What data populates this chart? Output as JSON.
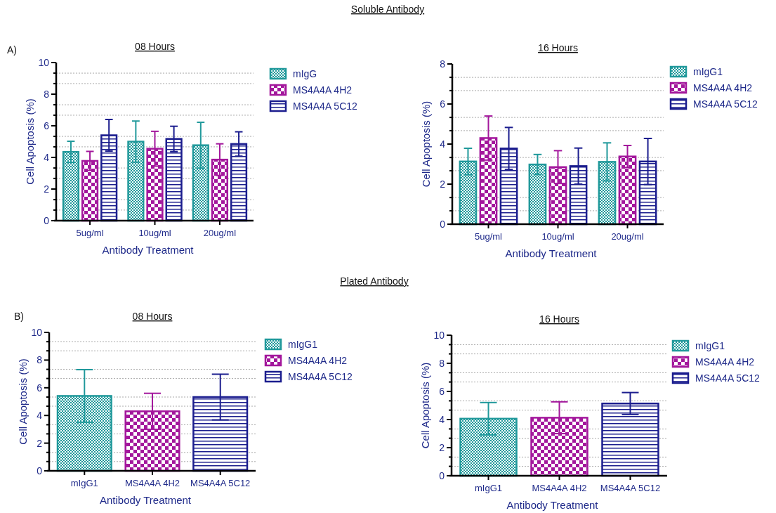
{
  "chart_data": [
    {
      "type": "bar",
      "title": "08 Hours",
      "xlabel": "Antibody Treatment",
      "ylabel": "Cell Apoptosis (%)",
      "annotations": [
        "Soluble Antibody",
        "A)"
      ],
      "categories": [
        "5ug/ml",
        "10ug/ml",
        "20ug/ml"
      ],
      "series": [
        {
          "name": "mIgG",
          "color": "#20999b",
          "values": [
            4.35,
            5.0,
            4.77
          ],
          "errors": [
            0.67,
            1.3,
            1.45
          ]
        },
        {
          "name": "MS4A4A 4H2",
          "color": "#a3179c",
          "values": [
            3.78,
            4.55,
            3.86
          ],
          "errors": [
            0.6,
            1.1,
            1.0
          ]
        },
        {
          "name": "MS4A4A 5C12",
          "color": "#1b1d8e",
          "values": [
            5.4,
            5.17,
            4.85
          ],
          "errors": [
            1.0,
            0.8,
            0.77
          ]
        }
      ],
      "ylim": [
        0,
        10
      ],
      "yticks": [
        0,
        {
          "value": 0.67,
          "label": null
        },
        {
          "value": 1.33,
          "label": null
        },
        2,
        {
          "value": 2.67,
          "label": null
        },
        {
          "value": 3.33,
          "label": null
        },
        4,
        {
          "value": 4.67,
          "label": null
        },
        {
          "value": 5.33,
          "label": null
        },
        6,
        {
          "value": 6.67,
          "label": null
        },
        {
          "value": 7.33,
          "label": null
        },
        8,
        {
          "value": 8.67,
          "label": null
        },
        {
          "value": 9.33,
          "label": null
        },
        10
      ],
      "grid": "y",
      "legend": "top right"
    },
    {
      "type": "bar",
      "title": "16 Hours",
      "xlabel": "Antibody Treatment",
      "ylabel": "Cell Apoptosis (%)",
      "categories": [
        "5ug/ml",
        "10ug/ml",
        "20ug/ml"
      ],
      "series": [
        {
          "name": "mIgG1",
          "color": "#20999b",
          "values": [
            3.13,
            2.98,
            3.11
          ],
          "errors": [
            0.66,
            0.5,
            0.95
          ]
        },
        {
          "name": "MS4A4A 4H2",
          "color": "#a3179c",
          "values": [
            4.3,
            2.85,
            3.38
          ],
          "errors": [
            1.1,
            0.82,
            0.55
          ]
        },
        {
          "name": "MS4A4A 5C12",
          "color": "#1b1d8e",
          "values": [
            3.78,
            2.9,
            3.13
          ],
          "errors": [
            1.05,
            0.9,
            1.15
          ]
        }
      ],
      "ylim": [
        0,
        8
      ],
      "yticks": [
        0,
        {
          "value": 0.67,
          "label": null
        },
        {
          "value": 1.33,
          "label": null
        },
        2,
        {
          "value": 2.67,
          "label": null
        },
        {
          "value": 3.33,
          "label": null
        },
        4,
        {
          "value": 4.67,
          "label": null
        },
        {
          "value": 5.33,
          "label": null
        },
        6,
        {
          "value": 6.67,
          "label": null
        },
        {
          "value": 7.33,
          "label": null
        },
        8
      ],
      "grid": "y",
      "legend": "top right"
    },
    {
      "type": "bar",
      "title": "08 Hours",
      "xlabel": "Antibody Treatment",
      "ylabel": "Cell Apoptosis (%)",
      "annotations": [
        "Plated Antibody",
        "B)"
      ],
      "categories": [
        "mIgG1",
        "MS4A4A 4H2",
        "MS4A4A 5C12"
      ],
      "series": [
        {
          "name": "mIgG1",
          "color": "#20999b",
          "values": [
            5.41,
            null,
            null
          ],
          "errors": [
            1.9,
            null,
            null
          ]
        },
        {
          "name": "MS4A4A 4H2",
          "color": "#a3179c",
          "values": [
            null,
            4.3,
            null
          ],
          "errors": [
            null,
            1.3,
            null
          ]
        },
        {
          "name": "MS4A4A 5C12",
          "color": "#1b1d8e",
          "values": [
            null,
            null,
            5.33
          ],
          "errors": [
            null,
            null,
            1.65
          ]
        }
      ],
      "ylim": [
        0,
        10
      ],
      "yticks": [
        0,
        {
          "value": 0.67,
          "label": null
        },
        {
          "value": 1.33,
          "label": null
        },
        2,
        {
          "value": 2.67,
          "label": null
        },
        {
          "value": 3.33,
          "label": null
        },
        4,
        {
          "value": 4.67,
          "label": null
        },
        {
          "value": 5.33,
          "label": null
        },
        6,
        {
          "value": 6.67,
          "label": null
        },
        {
          "value": 7.33,
          "label": null
        },
        8,
        {
          "value": 8.67,
          "label": null
        },
        {
          "value": 9.33,
          "label": null
        },
        10
      ],
      "grid": "y",
      "legend": "top right"
    },
    {
      "type": "bar",
      "title": "16 Hours",
      "xlabel": "Antibody Treatment",
      "ylabel": "Cell Apoptosis (%)",
      "categories": [
        "mIgG1",
        "MS4A4A 4H2",
        "MS4A4A 5C12"
      ],
      "series": [
        {
          "name": "mIgG1",
          "color": "#20999b",
          "values": [
            4.06,
            null,
            null
          ],
          "errors": [
            1.15,
            null,
            null
          ]
        },
        {
          "name": "MS4A4A 4H2",
          "color": "#a3179c",
          "values": [
            null,
            4.13,
            null
          ],
          "errors": [
            null,
            1.13,
            null
          ]
        },
        {
          "name": "MS4A4A 5C12",
          "color": "#1b1d8e",
          "values": [
            null,
            null,
            5.14
          ],
          "errors": [
            null,
            null,
            0.78
          ]
        }
      ],
      "ylim": [
        0,
        10
      ],
      "yticks": [
        0,
        {
          "value": 0.67,
          "label": null
        },
        {
          "value": 1.33,
          "label": null
        },
        2,
        {
          "value": 2.67,
          "label": null
        },
        {
          "value": 3.33,
          "label": null
        },
        4,
        {
          "value": 4.67,
          "label": null
        },
        {
          "value": 5.33,
          "label": null
        },
        6,
        {
          "value": 6.67,
          "label": null
        },
        {
          "value": 7.33,
          "label": null
        },
        8,
        {
          "value": 8.67,
          "label": null
        },
        {
          "value": 9.33,
          "label": null
        },
        10
      ],
      "grid": "y",
      "legend": "top right"
    }
  ]
}
